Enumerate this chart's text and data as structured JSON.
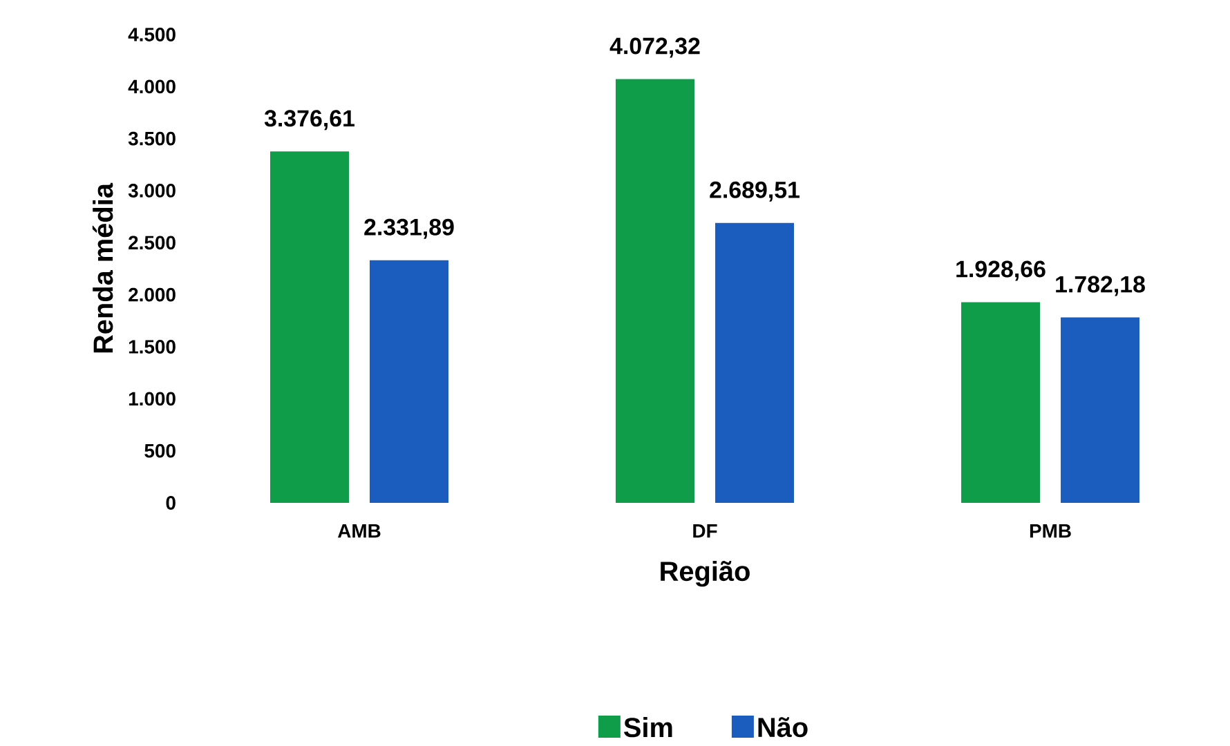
{
  "chart_data": {
    "type": "bar",
    "xlabel": "Região",
    "ylabel": "Renda média",
    "categories": [
      "AMB",
      "DF",
      "PMB"
    ],
    "series": [
      {
        "name": "Sim",
        "color": "#0f9d4a",
        "values": [
          3376.61,
          4072.32,
          1928.66
        ],
        "value_labels": [
          "3.376,61",
          "4.072,32",
          "1.928,66"
        ]
      },
      {
        "name": "Não",
        "color": "#1b5cbf",
        "values": [
          2331.89,
          2689.51,
          1782.18
        ],
        "value_labels": [
          "2.331,89",
          "2.689,51",
          "1.782,18"
        ]
      }
    ],
    "ylim": [
      0,
      4500
    ],
    "yticks": [
      0,
      500,
      {
        "value": 1000,
        "label": "1.000"
      },
      {
        "value": 1500,
        "label": "1.500"
      },
      {
        "value": 2000,
        "label": "2.000"
      },
      {
        "value": 2500,
        "label": "2.500"
      },
      {
        "value": 3000,
        "label": "3.000"
      },
      {
        "value": 3500,
        "label": "3.500"
      },
      {
        "value": 4000,
        "label": "4.000"
      },
      {
        "value": 4500,
        "label": "4.500"
      }
    ],
    "grid": false,
    "legend": "bottom"
  }
}
